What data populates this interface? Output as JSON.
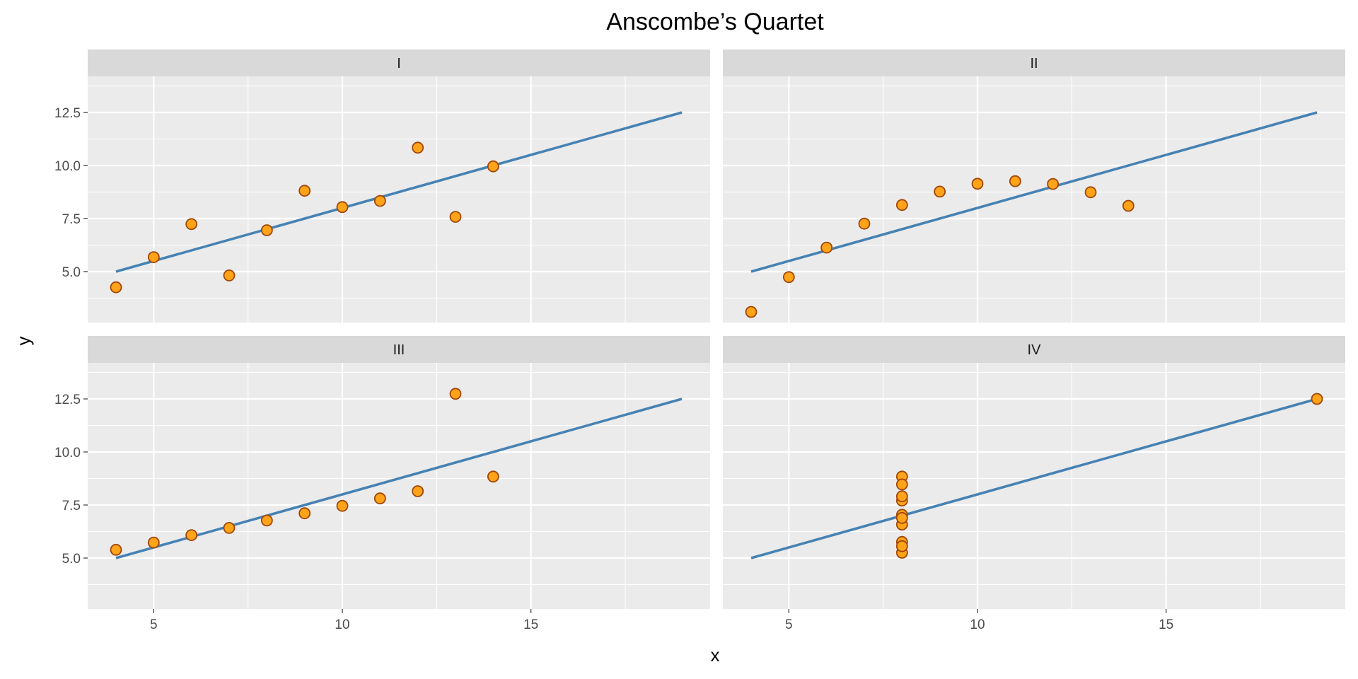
{
  "chart_data": {
    "type": "scatter",
    "title": "Anscombe’s Quartet",
    "xlabel": "x",
    "ylabel": "y",
    "xlim": [
      3.25,
      19.75
    ],
    "ylim": [
      2.6,
      14.2
    ],
    "x_ticks": [
      5,
      10,
      15
    ],
    "y_ticks": [
      5.0,
      7.5,
      10.0,
      12.5
    ],
    "y_tick_labels": [
      "5.0",
      "7.5",
      "10.0",
      "12.5"
    ],
    "grid": true,
    "point_fill": "#FFA319",
    "point_stroke": "#A0460A",
    "line_color": "#4682B4",
    "panel_bg": "#EBEBEB",
    "strip_bg": "#D9D9D9",
    "facets": [
      {
        "label": "I",
        "points": [
          [
            10,
            8.04
          ],
          [
            8,
            6.95
          ],
          [
            13,
            7.58
          ],
          [
            9,
            8.81
          ],
          [
            11,
            8.33
          ],
          [
            14,
            9.96
          ],
          [
            6,
            7.24
          ],
          [
            4,
            4.26
          ],
          [
            12,
            10.84
          ],
          [
            7,
            4.82
          ],
          [
            5,
            5.68
          ]
        ],
        "fit": [
          [
            4,
            5.0
          ],
          [
            19,
            12.5
          ]
        ]
      },
      {
        "label": "II",
        "points": [
          [
            10,
            9.14
          ],
          [
            8,
            8.14
          ],
          [
            13,
            8.74
          ],
          [
            9,
            8.77
          ],
          [
            11,
            9.26
          ],
          [
            14,
            8.1
          ],
          [
            6,
            6.13
          ],
          [
            4,
            3.1
          ],
          [
            12,
            9.13
          ],
          [
            7,
            7.26
          ],
          [
            5,
            4.74
          ]
        ],
        "fit": [
          [
            4,
            5.0
          ],
          [
            19,
            12.5
          ]
        ]
      },
      {
        "label": "III",
        "points": [
          [
            10,
            7.46
          ],
          [
            8,
            6.77
          ],
          [
            13,
            12.74
          ],
          [
            9,
            7.11
          ],
          [
            11,
            7.81
          ],
          [
            14,
            8.84
          ],
          [
            6,
            6.08
          ],
          [
            4,
            5.39
          ],
          [
            12,
            8.15
          ],
          [
            7,
            6.42
          ],
          [
            5,
            5.73
          ]
        ],
        "fit": [
          [
            4,
            5.0
          ],
          [
            19,
            12.5
          ]
        ]
      },
      {
        "label": "IV",
        "points": [
          [
            8,
            6.58
          ],
          [
            8,
            5.76
          ],
          [
            8,
            7.71
          ],
          [
            8,
            8.84
          ],
          [
            8,
            8.47
          ],
          [
            8,
            7.04
          ],
          [
            8,
            5.25
          ],
          [
            19,
            12.5
          ],
          [
            8,
            5.56
          ],
          [
            8,
            7.91
          ],
          [
            8,
            6.89
          ]
        ],
        "fit": [
          [
            4,
            5.0
          ],
          [
            19,
            12.5
          ]
        ]
      }
    ]
  }
}
